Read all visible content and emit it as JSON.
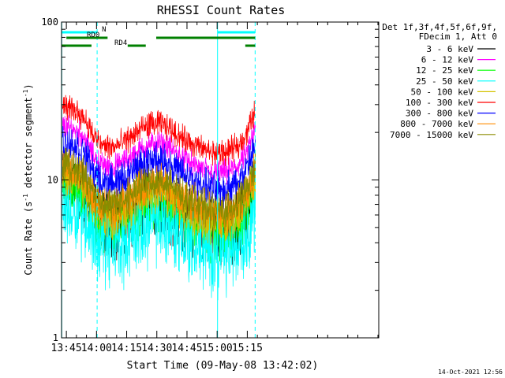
{
  "chart_data": {
    "type": "line",
    "title": "RHESSI Count Rates",
    "xlabel": "Start Time (09-May-08 13:42:02)",
    "ylabel_main": "Count Rate (s",
    "ylabel_sup": "-1",
    "ylabel_tail": " detector segment",
    "ylabel_sup2": "-1",
    "ylabel_close": ")",
    "y_scale": "log",
    "ylim": [
      1,
      100
    ],
    "y_ticks": [
      {
        "v": 1,
        "label": "1"
      },
      {
        "v": 10,
        "label": "10"
      },
      {
        "v": 100,
        "label": "100"
      }
    ],
    "xlim_minutes": [
      822.6,
      980.4
    ],
    "x_ticks": [
      {
        "m": 825,
        "label": "13:45"
      },
      {
        "m": 840,
        "label": "14:00"
      },
      {
        "m": 855,
        "label": "14:15"
      },
      {
        "m": 870,
        "label": "14:30"
      },
      {
        "m": 885,
        "label": "14:45"
      },
      {
        "m": 900,
        "label": "15:00"
      },
      {
        "m": 915,
        "label": "15:15"
      }
    ],
    "legend_header": [
      "Det 1f,3f,4f,5f,6f,9f,",
      "FDecim 1, Att 0"
    ],
    "series": [
      {
        "name": "3 - 6 keV",
        "color": "#000000",
        "base": 6.3,
        "noise": 0.14
      },
      {
        "name": "6 - 12 keV",
        "color": "#ff00ff",
        "base": 14.2,
        "noise": 0.05
      },
      {
        "name": "12 - 25 keV",
        "color": "#00ff00",
        "base": 5.9,
        "noise": 0.11
      },
      {
        "name": "25 - 50 keV",
        "color": "#00ffff",
        "base": 4.5,
        "noise": 0.16
      },
      {
        "name": "50 - 100 keV",
        "color": "#d4c200",
        "base": 7.0,
        "noise": 0.09
      },
      {
        "name": "100 - 300 keV",
        "color": "#ff0000",
        "base": 19.0,
        "noise": 0.05
      },
      {
        "name": "300 - 800 keV",
        "color": "#0000ff",
        "base": 11.2,
        "noise": 0.07
      },
      {
        "name": "800 - 7000 keV",
        "color": "#ff8c00",
        "base": 7.8,
        "noise": 0.08
      },
      {
        "name": "7000 - 15000 keV",
        "color": "#8b8b00",
        "base": 8.2,
        "noise": 0.07
      }
    ],
    "rate_profile": [
      {
        "m": 823,
        "f": 1.55
      },
      {
        "m": 830,
        "f": 1.45
      },
      {
        "m": 834,
        "f": 1.3
      },
      {
        "m": 838,
        "f": 1.02
      },
      {
        "m": 842,
        "f": 0.88
      },
      {
        "m": 848,
        "f": 0.84
      },
      {
        "m": 854,
        "f": 0.92
      },
      {
        "m": 860,
        "f": 1.05
      },
      {
        "m": 866,
        "f": 1.18
      },
      {
        "m": 872,
        "f": 1.2
      },
      {
        "m": 878,
        "f": 1.08
      },
      {
        "m": 884,
        "f": 0.95
      },
      {
        "m": 890,
        "f": 0.85
      },
      {
        "m": 898,
        "f": 0.78
      },
      {
        "m": 904,
        "f": 0.78
      },
      {
        "m": 910,
        "f": 0.85
      },
      {
        "m": 915,
        "f": 1.05
      },
      {
        "m": 919,
        "f": 1.45
      }
    ],
    "vertical_markers_minutes": [
      {
        "m": 822.7,
        "style": "solid"
      },
      {
        "m": 840.3,
        "style": "dashed"
      },
      {
        "m": 900.2,
        "style": "solid"
      },
      {
        "m": 918.9,
        "style": "dashed"
      }
    ],
    "flag_bars": [
      {
        "label": "N",
        "color": "#00ffff",
        "row": 0,
        "segments": [
          [
            822.7,
            840.3
          ],
          [
            900.2,
            918.9
          ]
        ]
      },
      {
        "label": "RD0",
        "color": "#008000",
        "row": 1,
        "segments": [
          [
            825.0,
            845.5
          ],
          [
            869.7,
            918.9
          ]
        ]
      },
      {
        "label": "RD4",
        "color": "#008000",
        "row": 2,
        "segments": [
          [
            822.7,
            837.5
          ],
          [
            855.5,
            864.5
          ],
          [
            914.0,
            918.9
          ]
        ]
      }
    ],
    "timestamp": "14-Oct-2021 12:56"
  }
}
